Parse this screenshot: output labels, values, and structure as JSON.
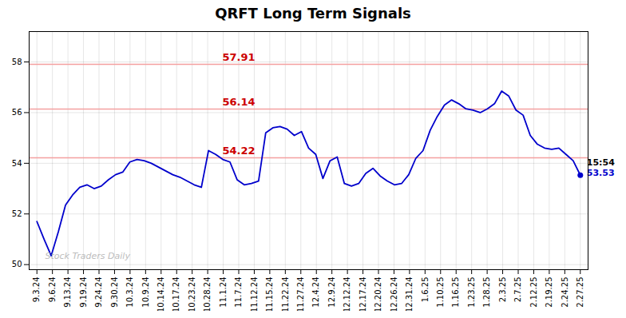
{
  "chart_data": {
    "type": "line",
    "title": "QRFT Long Term Signals",
    "color": "#0000cc",
    "x": [
      0,
      0.4605,
      0.9211,
      1.3816,
      1.8421,
      2.3026,
      2.7632,
      3.2237,
      3.6842,
      4.1447,
      4.6053,
      5.0658,
      5.5263,
      5.9868,
      6.4474,
      6.9079,
      7.3684,
      7.8289,
      8.2895,
      8.75,
      9.2105,
      9.6711,
      10.1316,
      10.5921,
      11.0526,
      11.5132,
      11.9737,
      12.4342,
      12.8947,
      13.3553,
      13.8158,
      14.2763,
      14.7368,
      15.1974,
      15.6579,
      16.1184,
      16.5789,
      17.0395,
      17.5,
      17.9605,
      18.4211,
      18.8816,
      19.3421,
      19.8026,
      20.2632,
      20.7237,
      21.1842,
      21.6447,
      22.1053,
      22.5658,
      23.0263,
      23.4868,
      23.9474,
      24.4079,
      24.8684,
      25.3289,
      25.7895,
      26.25,
      26.7105,
      27.1711,
      27.6316,
      28.0921,
      28.5526,
      29.0132,
      29.4737,
      29.9342,
      30.3947,
      30.8553,
      31.3158,
      31.7763,
      32.2368,
      32.6974,
      33.1579,
      33.6184,
      34.0789,
      34.5395,
      35
    ],
    "values": [
      51.7,
      51.0,
      50.35,
      51.3,
      52.35,
      52.75,
      53.05,
      53.15,
      53.0,
      53.1,
      53.35,
      53.55,
      53.65,
      54.05,
      54.15,
      54.1,
      54.0,
      53.85,
      53.7,
      53.55,
      53.45,
      53.3,
      53.15,
      53.05,
      54.5,
      54.35,
      54.15,
      54.05,
      53.35,
      53.15,
      53.2,
      53.3,
      55.2,
      55.4,
      55.45,
      55.35,
      55.1,
      55.25,
      54.6,
      54.35,
      53.4,
      54.1,
      54.25,
      53.2,
      53.1,
      53.2,
      53.6,
      53.8,
      53.5,
      53.3,
      53.15,
      53.2,
      53.55,
      54.2,
      54.5,
      55.3,
      55.85,
      56.3,
      56.5,
      56.35,
      56.15,
      56.1,
      56.0,
      56.15,
      56.35,
      56.85,
      56.65,
      56.1,
      55.9,
      55.1,
      54.75,
      54.6,
      54.55,
      54.6,
      54.35,
      54.1,
      53.53
    ],
    "xlim": [
      -0.5,
      35.5
    ],
    "xticks": [
      {
        "value": 0,
        "label": "9.3.24"
      },
      {
        "value": 1,
        "label": "9.6.24"
      },
      {
        "value": 2,
        "label": "9.13.24"
      },
      {
        "value": 3,
        "label": "9.19.24"
      },
      {
        "value": 4,
        "label": "9.24.24"
      },
      {
        "value": 5,
        "label": "9.30.24"
      },
      {
        "value": 6,
        "label": "10.3.24"
      },
      {
        "value": 7,
        "label": "10.9.24"
      },
      {
        "value": 8,
        "label": "10.14.24"
      },
      {
        "value": 9,
        "label": "10.17.24"
      },
      {
        "value": 10,
        "label": "10.23.24"
      },
      {
        "value": 11,
        "label": "10.28.24"
      },
      {
        "value": 12,
        "label": "11.1.24"
      },
      {
        "value": 13,
        "label": "11.7.24"
      },
      {
        "value": 14,
        "label": "11.12.24"
      },
      {
        "value": 15,
        "label": "11.15.24"
      },
      {
        "value": 16,
        "label": "11.22.24"
      },
      {
        "value": 17,
        "label": "11.27.24"
      },
      {
        "value": 18,
        "label": "12.4.24"
      },
      {
        "value": 19,
        "label": "12.9.24"
      },
      {
        "value": 20,
        "label": "12.12.24"
      },
      {
        "value": 21,
        "label": "12.17.24"
      },
      {
        "value": 22,
        "label": "12.20.24"
      },
      {
        "value": 23,
        "label": "12.26.24"
      },
      {
        "value": 24,
        "label": "12.31.24"
      },
      {
        "value": 25,
        "label": "1.6.25"
      },
      {
        "value": 26,
        "label": "1.10.25"
      },
      {
        "value": 27,
        "label": "1.16.25"
      },
      {
        "value": 28,
        "label": "1.23.25"
      },
      {
        "value": 29,
        "label": "1.28.25"
      },
      {
        "value": 30,
        "label": "2.3.25"
      },
      {
        "value": 31,
        "label": "2.7.25"
      },
      {
        "value": 32,
        "label": "2.12.25"
      },
      {
        "value": 33,
        "label": "2.19.25"
      },
      {
        "value": 34,
        "label": "2.24.25"
      },
      {
        "value": 35,
        "label": "2.27.25"
      }
    ],
    "ylim": [
      49.8,
      59.2
    ],
    "yticks": [
      50,
      52,
      54,
      56,
      58
    ],
    "grid": true,
    "reference_lines": [
      {
        "value": 57.91,
        "label": "57.91",
        "color": "#f4a0a0",
        "label_color": "#cc0000"
      },
      {
        "value": 56.14,
        "label": "56.14",
        "color": "#f4a0a0",
        "label_color": "#cc0000"
      },
      {
        "value": 54.22,
        "label": "54.22",
        "color": "#f4a0a0",
        "label_color": "#cc0000"
      }
    ],
    "annotations": [
      {
        "text": "15:54",
        "x": 35,
        "y": 53.53,
        "color": "#000000"
      },
      {
        "text": "53.53",
        "x": 35,
        "y": 53.53,
        "color": "#0000cc"
      },
      {
        "text": "Stock Traders Daily",
        "color": "#aaaaaa"
      }
    ]
  }
}
